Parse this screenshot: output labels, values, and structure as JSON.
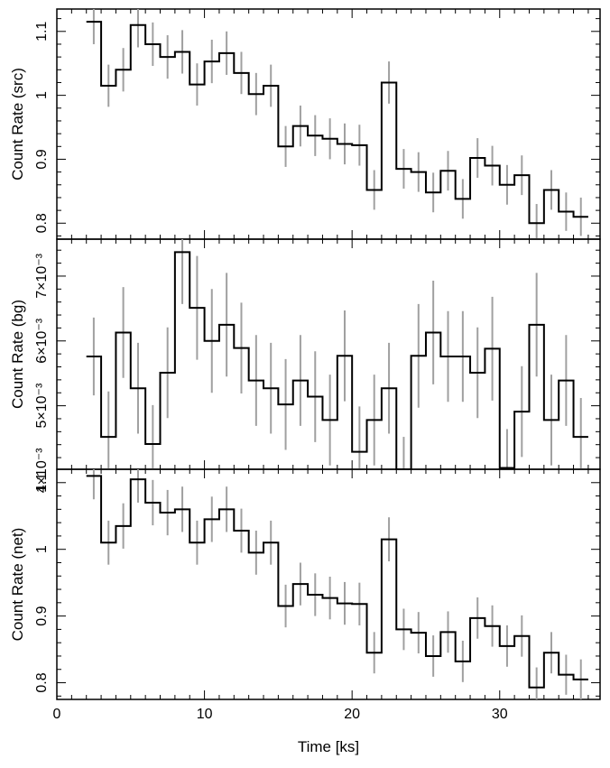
{
  "chart_data": [
    {
      "type": "line",
      "ylabel": "Count Rate (src)",
      "ylim": [
        0.775,
        1.135
      ],
      "yticks": [
        {
          "value": 0.8,
          "label": "0.8"
        },
        {
          "value": 0.9,
          "label": "0.9"
        },
        {
          "value": 1.0,
          "label": "1"
        },
        {
          "value": 1.1,
          "label": "1.1"
        }
      ],
      "series": [
        {
          "x": [
            2.5,
            3.5,
            4.5,
            5.5,
            6.5,
            7.5,
            8.5,
            9.5,
            10.5,
            11.5,
            12.5,
            13.5,
            14.5,
            15.5,
            16.5,
            17.5,
            18.5,
            19.5,
            20.5,
            21.5,
            22.5,
            23.5,
            24.5,
            25.5,
            26.5,
            27.5,
            28.5,
            29.5,
            30.5,
            31.5,
            32.5,
            33.5,
            34.5,
            35.5
          ],
          "y": [
            1.115,
            1.015,
            1.04,
            1.11,
            1.08,
            1.06,
            1.068,
            1.017,
            1.053,
            1.066,
            1.035,
            1.002,
            1.015,
            0.92,
            0.952,
            0.937,
            0.932,
            0.924,
            0.922,
            0.852,
            1.02,
            0.885,
            0.88,
            0.848,
            0.882,
            0.838,
            0.902,
            0.89,
            0.86,
            0.875,
            0.8,
            0.852,
            0.818,
            0.81
          ],
          "err": [
            0.035,
            0.033,
            0.034,
            0.035,
            0.034,
            0.034,
            0.034,
            0.033,
            0.034,
            0.034,
            0.033,
            0.033,
            0.033,
            0.032,
            0.032,
            0.032,
            0.032,
            0.032,
            0.032,
            0.031,
            0.033,
            0.031,
            0.031,
            0.031,
            0.031,
            0.031,
            0.031,
            0.031,
            0.031,
            0.031,
            0.03,
            0.031,
            0.03,
            0.03
          ]
        }
      ]
    },
    {
      "type": "line",
      "ylabel": "Count Rate (bg)",
      "ylim": [
        0.00402,
        0.00757
      ],
      "yticks": [
        {
          "value": 0.004,
          "label": "4×10⁻³"
        },
        {
          "value": 0.005,
          "label": "5×10⁻³"
        },
        {
          "value": 0.006,
          "label": "6×10⁻³"
        },
        {
          "value": 0.007,
          "label": "7×10⁻³"
        }
      ],
      "series": [
        {
          "x": [
            2.5,
            3.5,
            4.5,
            5.5,
            6.5,
            7.5,
            8.5,
            9.5,
            10.5,
            11.5,
            12.5,
            13.5,
            14.5,
            15.5,
            16.5,
            17.5,
            18.5,
            19.5,
            20.5,
            21.5,
            22.5,
            23.5,
            24.5,
            25.5,
            26.5,
            27.5,
            28.5,
            29.5,
            30.5,
            31.5,
            32.5,
            33.5,
            34.5,
            35.5
          ],
          "y": [
            0.00576,
            0.00452,
            0.00613,
            0.00527,
            0.00441,
            0.00551,
            0.00737,
            0.00651,
            0.006,
            0.00625,
            0.00589,
            0.00539,
            0.00527,
            0.00502,
            0.00539,
            0.00514,
            0.00478,
            0.00577,
            0.00429,
            0.00478,
            0.00527,
            0.00392,
            0.00577,
            0.00613,
            0.00576,
            0.00576,
            0.00551,
            0.00588,
            0.00404,
            0.00491,
            0.00625,
            0.00478,
            0.00539,
            0.00452
          ],
          "err": [
            0.0006,
            0.0007,
            0.0007,
            0.0007,
            0.0006,
            0.0007,
            0.0008,
            0.0008,
            0.0008,
            0.0008,
            0.0007,
            0.0007,
            0.0007,
            0.0007,
            0.0007,
            0.0007,
            0.0007,
            0.0007,
            0.0007,
            0.0007,
            0.0007,
            0.0006,
            0.0008,
            0.0008,
            0.0007,
            0.0007,
            0.0007,
            0.0008,
            0.0006,
            0.0007,
            0.0008,
            0.0007,
            0.0007,
            0.0006
          ]
        }
      ]
    },
    {
      "type": "line",
      "xlabel": "Time [ks]",
      "ylabel": "Count Rate (net)",
      "xlim": [
        0,
        36.8
      ],
      "ylim": [
        0.775,
        1.12
      ],
      "xticks": [
        {
          "value": 0,
          "label": "0"
        },
        {
          "value": 10,
          "label": "10"
        },
        {
          "value": 20,
          "label": "20"
        },
        {
          "value": 30,
          "label": "30"
        }
      ],
      "yticks": [
        {
          "value": 0.8,
          "label": "0.8"
        },
        {
          "value": 0.9,
          "label": "0.9"
        },
        {
          "value": 1.0,
          "label": "1"
        },
        {
          "value": 1.1,
          "label": "1.1"
        }
      ],
      "series": [
        {
          "x": [
            2.5,
            3.5,
            4.5,
            5.5,
            6.5,
            7.5,
            8.5,
            9.5,
            10.5,
            11.5,
            12.5,
            13.5,
            14.5,
            15.5,
            16.5,
            17.5,
            18.5,
            19.5,
            20.5,
            21.5,
            22.5,
            23.5,
            24.5,
            25.5,
            26.5,
            27.5,
            28.5,
            29.5,
            30.5,
            31.5,
            32.5,
            33.5,
            34.5,
            35.5
          ],
          "y": [
            1.11,
            1.01,
            1.035,
            1.105,
            1.07,
            1.055,
            1.06,
            1.01,
            1.045,
            1.06,
            1.028,
            0.995,
            1.01,
            0.915,
            0.948,
            0.932,
            0.927,
            0.919,
            0.918,
            0.845,
            1.015,
            0.88,
            0.875,
            0.84,
            0.876,
            0.832,
            0.897,
            0.885,
            0.855,
            0.87,
            0.793,
            0.845,
            0.812,
            0.805
          ],
          "err": [
            0.035,
            0.033,
            0.034,
            0.035,
            0.034,
            0.034,
            0.034,
            0.033,
            0.034,
            0.034,
            0.033,
            0.033,
            0.033,
            0.032,
            0.032,
            0.032,
            0.032,
            0.032,
            0.032,
            0.031,
            0.033,
            0.031,
            0.031,
            0.031,
            0.031,
            0.031,
            0.031,
            0.031,
            0.031,
            0.031,
            0.03,
            0.031,
            0.03,
            0.03
          ]
        }
      ]
    }
  ]
}
